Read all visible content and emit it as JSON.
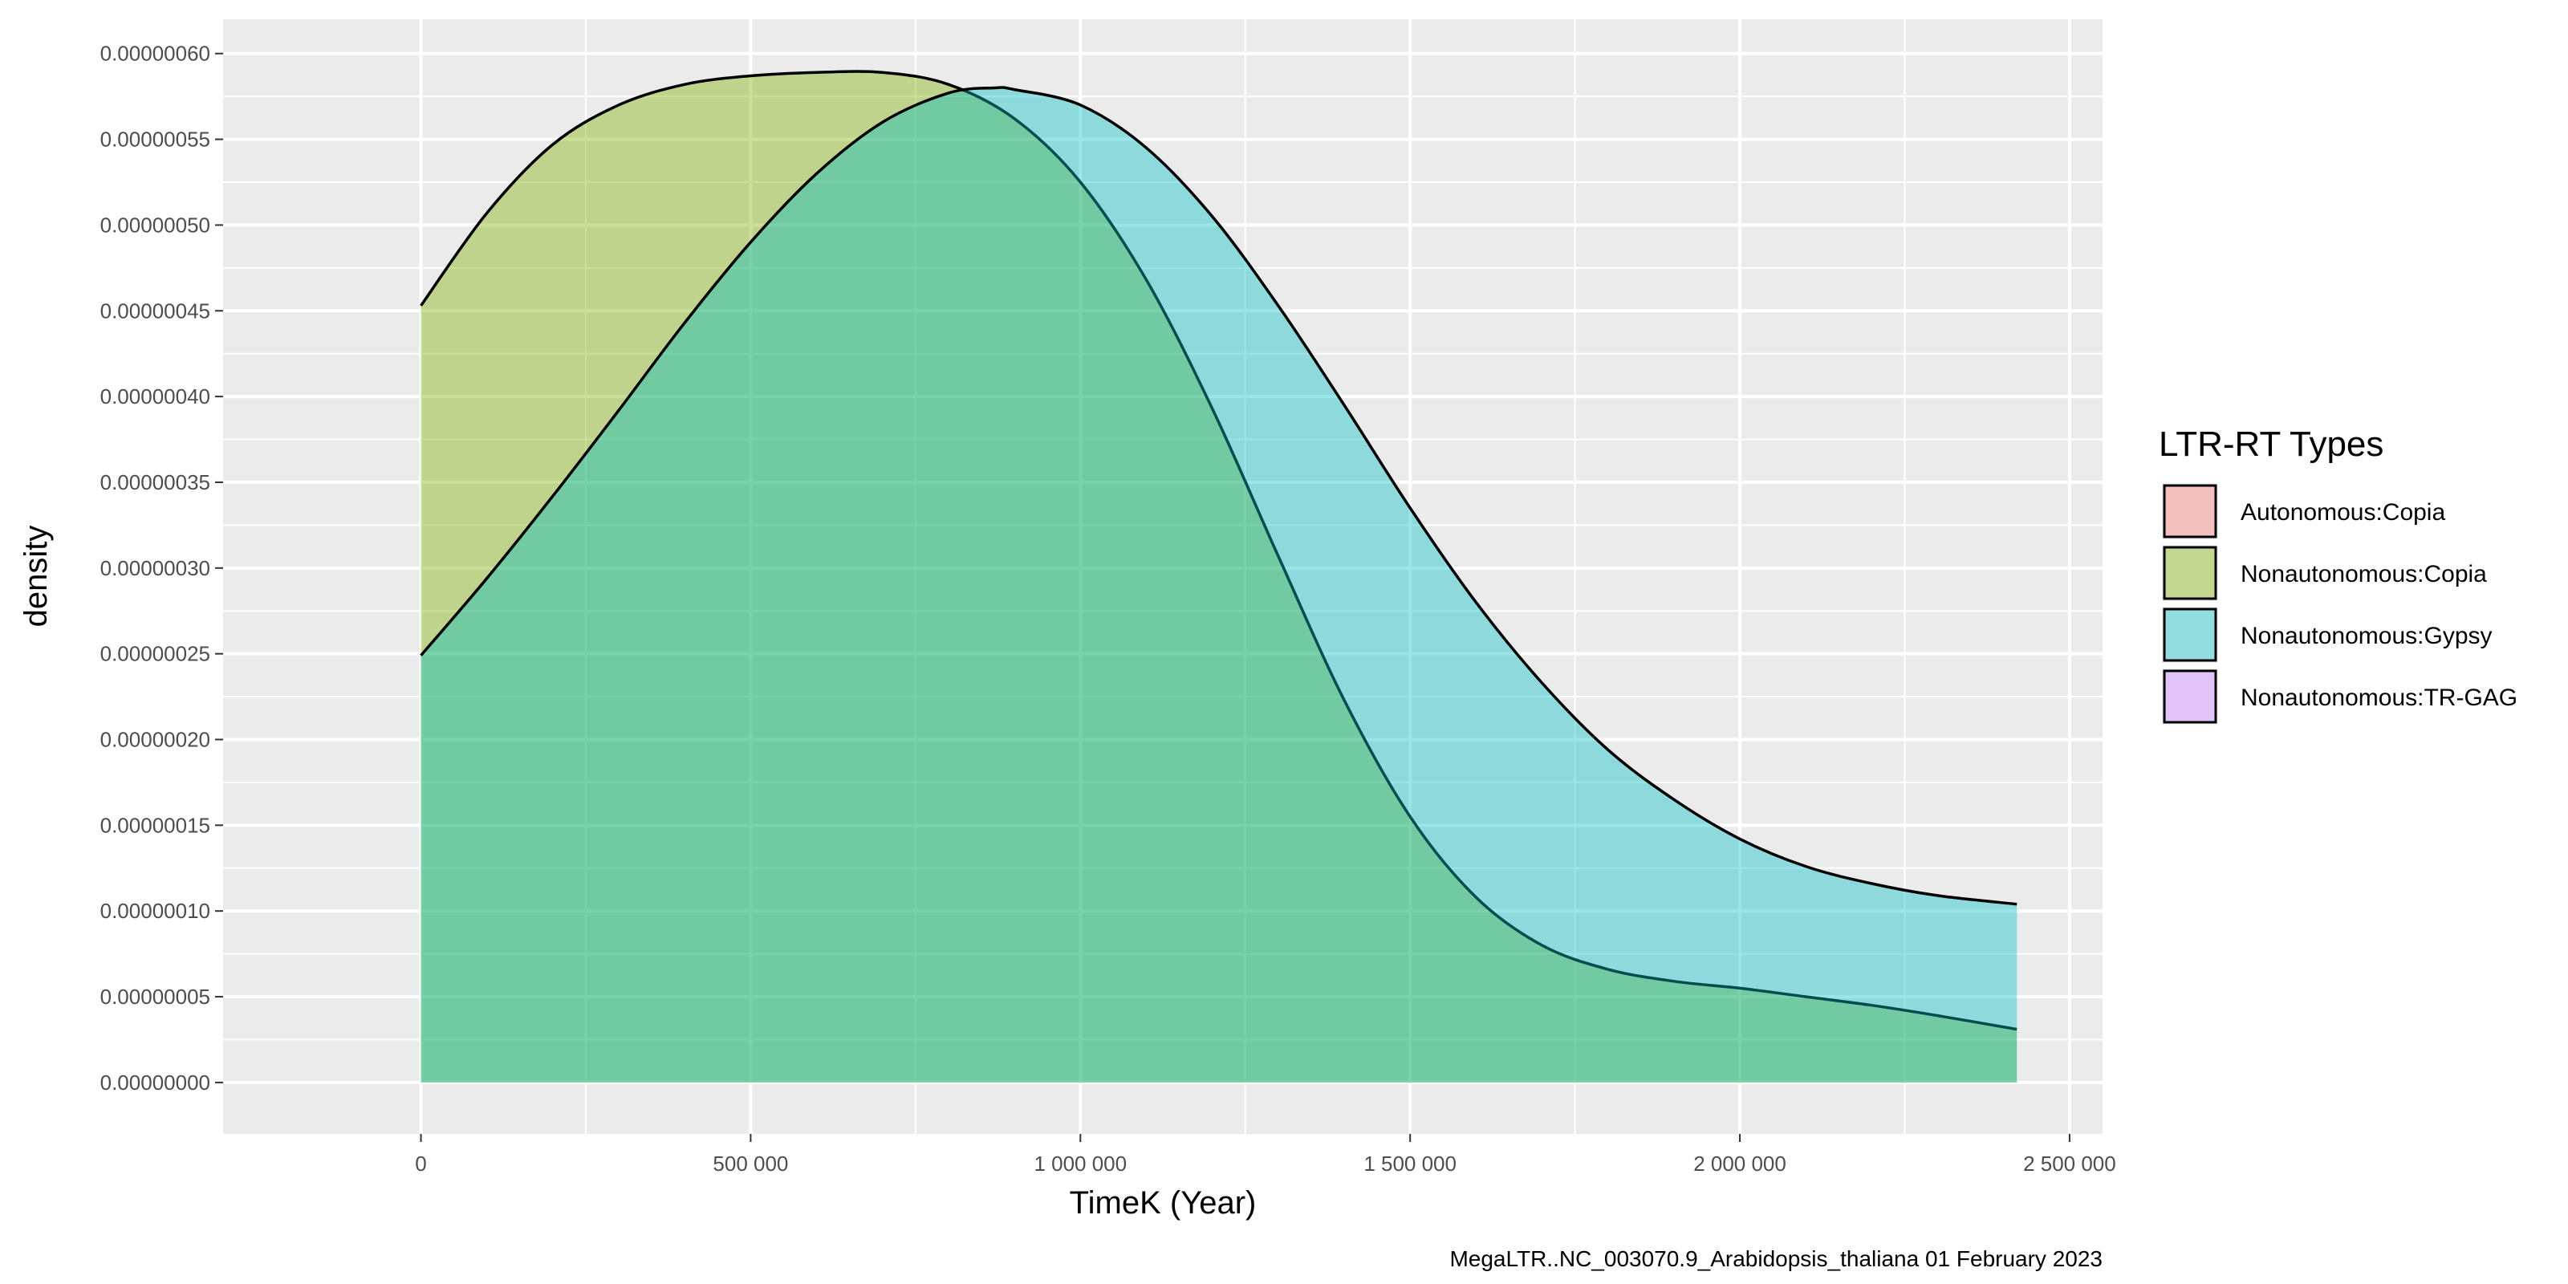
{
  "chart_data": {
    "type": "area",
    "subtype": "density",
    "xlabel": "TimeK (Year)",
    "ylabel": "density",
    "caption": "MegaLTR..NC_003070.9_Arabidopsis_thaliana 01 February 2023",
    "xlim": [
      -300000,
      2550000
    ],
    "ylim": [
      -3e-08,
      6.2e-07
    ],
    "x_ticks": [
      0,
      500000,
      1000000,
      1500000,
      2000000,
      2500000
    ],
    "x_tick_labels": [
      "0",
      "500 000",
      "1 000 000",
      "1 500 000",
      "2 000 000",
      "2 500 000"
    ],
    "y_ticks": [
      0,
      5e-08,
      1e-07,
      1.5e-07,
      2e-07,
      2.5e-07,
      3e-07,
      3.5e-07,
      4e-07,
      4.5e-07,
      5e-07,
      5.5e-07,
      6e-07
    ],
    "y_tick_labels": [
      "0.00000000",
      "0.00000005",
      "0.00000010",
      "0.00000015",
      "0.00000020",
      "0.00000025",
      "0.00000030",
      "0.00000035",
      "0.00000040",
      "0.00000045",
      "0.00000050",
      "0.00000055",
      "0.00000060"
    ],
    "grid": true,
    "background": "#ebebeb",
    "legend": {
      "title": "LTR-RT Types",
      "position": "right",
      "entries": [
        {
          "label": "Autonomous:Copia",
          "color": "#f8766d"
        },
        {
          "label": "Nonautonomous:Copia",
          "color": "#7cae00"
        },
        {
          "label": "Nonautonomous:Gypsy",
          "color": "#00bfc4"
        },
        {
          "label": "Nonautonomous:TR-GAG",
          "color": "#c77cff"
        }
      ]
    },
    "series": [
      {
        "name": "Nonautonomous:Copia",
        "color": "#7cae00",
        "x": [
          0,
          100000,
          200000,
          300000,
          400000,
          500000,
          600000,
          700000,
          800000,
          900000,
          1000000,
          1100000,
          1200000,
          1300000,
          1400000,
          1500000,
          1600000,
          1700000,
          1800000,
          1900000,
          2000000,
          2100000,
          2200000,
          2300000,
          2420000
        ],
        "values": [
          4.53e-07,
          5.07e-07,
          5.47e-07,
          5.7e-07,
          5.82e-07,
          5.87e-07,
          5.89e-07,
          5.89e-07,
          5.82e-07,
          5.62e-07,
          5.25e-07,
          4.68e-07,
          3.93e-07,
          3.07e-07,
          2.23e-07,
          1.55e-07,
          1.08e-07,
          8e-08,
          6.6e-08,
          5.9e-08,
          5.5e-08,
          5e-08,
          4.5e-08,
          3.9e-08,
          3.1e-08
        ]
      },
      {
        "name": "Nonautonomous:Gypsy",
        "color": "#00bfc4",
        "x": [
          0,
          100000,
          200000,
          300000,
          400000,
          500000,
          600000,
          700000,
          800000,
          870000,
          900000,
          1000000,
          1100000,
          1200000,
          1300000,
          1400000,
          1500000,
          1600000,
          1700000,
          1800000,
          1900000,
          2000000,
          2100000,
          2200000,
          2300000,
          2420000
        ],
        "values": [
          2.49e-07,
          2.94e-07,
          3.42e-07,
          3.92e-07,
          4.43e-07,
          4.9e-07,
          5.3e-07,
          5.6e-07,
          5.77e-07,
          5.8e-07,
          5.79e-07,
          5.7e-07,
          5.45e-07,
          5.05e-07,
          4.53e-07,
          3.95e-07,
          3.35e-07,
          2.8e-07,
          2.33e-07,
          1.94e-07,
          1.65e-07,
          1.42e-07,
          1.26e-07,
          1.16e-07,
          1.09e-07,
          1.04e-07
        ]
      }
    ]
  }
}
